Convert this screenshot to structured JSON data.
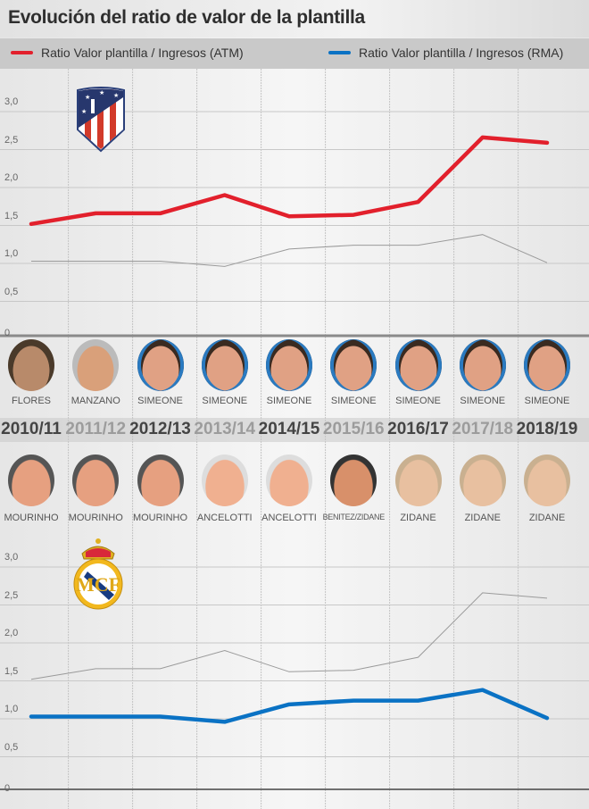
{
  "title": "Evolución del ratio de valor de la plantilla",
  "legend": [
    {
      "label": "Ratio Valor plantilla / Ingresos (ATM)",
      "color": "#e2202c"
    },
    {
      "label": "Ratio Valor plantilla / Ingresos (RMA)",
      "color": "#0a72c4"
    }
  ],
  "chart_data": {
    "type": "line",
    "title": "Evolución del ratio de valor de la plantilla",
    "xlabel": "",
    "ylabel": "",
    "categories": [
      "2010/11",
      "2011/12",
      "2012/13",
      "2013/14",
      "2014/15",
      "2015/16",
      "2016/17",
      "2017/18",
      "2018/19"
    ],
    "series": [
      {
        "name": "Ratio Valor plantilla / Ingresos (ATM)",
        "values": [
          1.52,
          1.66,
          1.66,
          1.9,
          1.62,
          1.64,
          1.81,
          2.66,
          2.59
        ]
      },
      {
        "name": "Ratio Valor plantilla / Ingresos (RMA)",
        "values": [
          1.03,
          1.03,
          1.03,
          0.96,
          1.19,
          1.24,
          1.24,
          1.38,
          1.01
        ]
      }
    ],
    "ylim": [
      0,
      3.0
    ],
    "yticks": [
      "0",
      "0,5",
      "1,0",
      "1,5",
      "2,0",
      "2,5",
      "3,0"
    ],
    "ytick_values": [
      0,
      0.5,
      1.0,
      1.5,
      2.0,
      2.5,
      3.0
    ],
    "grid": true,
    "legend_position": "top"
  },
  "coaches": {
    "atm": [
      "FLORES",
      "MANZANO",
      "SIMEONE",
      "SIMEONE",
      "SIMEONE",
      "SIMEONE",
      "SIMEONE",
      "SIMEONE",
      "SIMEONE"
    ],
    "rma": [
      "MOURINHO",
      "MOURINHO",
      "MOURINHO",
      "ANCELOTTI",
      "ANCELOTTI",
      "BENITEZ/ZIDANE",
      "ZIDANE",
      "ZIDANE",
      "ZIDANE"
    ]
  },
  "colors": {
    "atm": "#e2202c",
    "rma": "#0a72c4",
    "other": "#9a9a9a",
    "season_dark": "#444444",
    "season_light": "#9c9c9c"
  }
}
